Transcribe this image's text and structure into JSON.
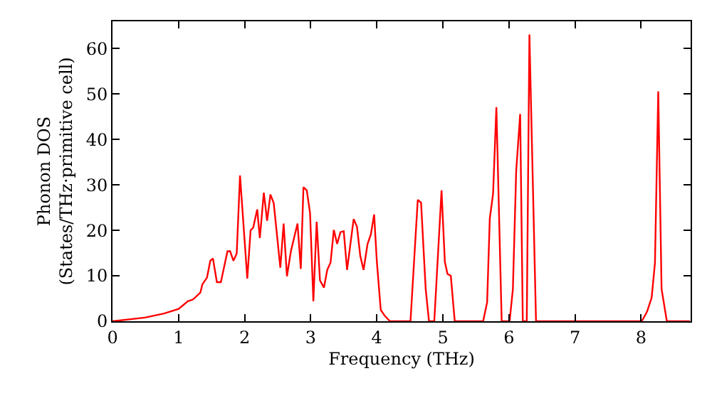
{
  "chart_data": {
    "type": "line",
    "xlabel": "Frequency (THz)",
    "ylabel": "Phonon DOS\n(States/THz·primitive cell)",
    "xlim": [
      0,
      8.75
    ],
    "ylim": [
      0,
      66
    ],
    "xticks": [
      0,
      1,
      2,
      3,
      4,
      5,
      6,
      7,
      8
    ],
    "yticks": [
      0,
      10,
      20,
      30,
      40,
      50,
      60
    ],
    "marker": "none",
    "line_style": "solid",
    "series": [
      {
        "color": "#ff0000",
        "x": [
          0,
          0.49,
          0.78,
          1.0,
          1.14,
          1.22,
          1.33,
          1.36,
          1.43,
          1.48,
          1.52,
          1.58,
          1.64,
          1.74,
          1.78,
          1.83,
          1.88,
          1.93,
          2.04,
          2.09,
          2.13,
          2.19,
          2.23,
          2.29,
          2.34,
          2.39,
          2.44,
          2.54,
          2.59,
          2.64,
          2.7,
          2.8,
          2.85,
          2.89,
          2.94,
          2.99,
          3.04,
          3.09,
          3.14,
          3.2,
          3.25,
          3.3,
          3.35,
          3.4,
          3.45,
          3.5,
          3.55,
          3.65,
          3.7,
          3.75,
          3.8,
          3.86,
          3.91,
          3.96,
          4.0,
          4.06,
          4.12,
          4.2,
          4.51,
          4.62,
          4.67,
          4.74,
          4.79,
          4.87,
          4.98,
          5.03,
          5.07,
          5.12,
          5.18,
          5.61,
          5.67,
          5.71,
          5.76,
          5.81,
          5.89,
          6.01,
          6.06,
          6.11,
          6.17,
          6.21,
          6.27,
          6.31,
          6.41,
          8.01,
          8.09,
          8.16,
          8.21,
          8.26,
          8.31,
          8.39,
          8.74
        ],
        "values": [
          0,
          0.8,
          1.7,
          2.7,
          4.4,
          4.8,
          6.3,
          8.1,
          9.6,
          13.3,
          13.8,
          8.6,
          8.6,
          15.4,
          15.4,
          13.3,
          14.9,
          32.1,
          9.4,
          20,
          20.6,
          24.6,
          18.3,
          28.3,
          22.1,
          27.9,
          26,
          11.8,
          21.5,
          9.9,
          15.4,
          21.5,
          11.5,
          29.5,
          28.8,
          23.8,
          4.4,
          21.9,
          9,
          7.4,
          11.3,
          12.9,
          20.1,
          17,
          19.6,
          19.8,
          11.3,
          22.5,
          20.8,
          14.4,
          11.3,
          17,
          19.1,
          23.5,
          13.3,
          2.5,
          1.2,
          0,
          0,
          26.7,
          26.1,
          7.1,
          0,
          0,
          28.8,
          13.1,
          10.4,
          10,
          0,
          0,
          4.2,
          22.5,
          28.1,
          47.1,
          0,
          0,
          7.1,
          33.1,
          45.6,
          0,
          0,
          63.1,
          0,
          0,
          2.1,
          5.2,
          12.8,
          50.6,
          7.1,
          0,
          0
        ]
      }
    ]
  }
}
